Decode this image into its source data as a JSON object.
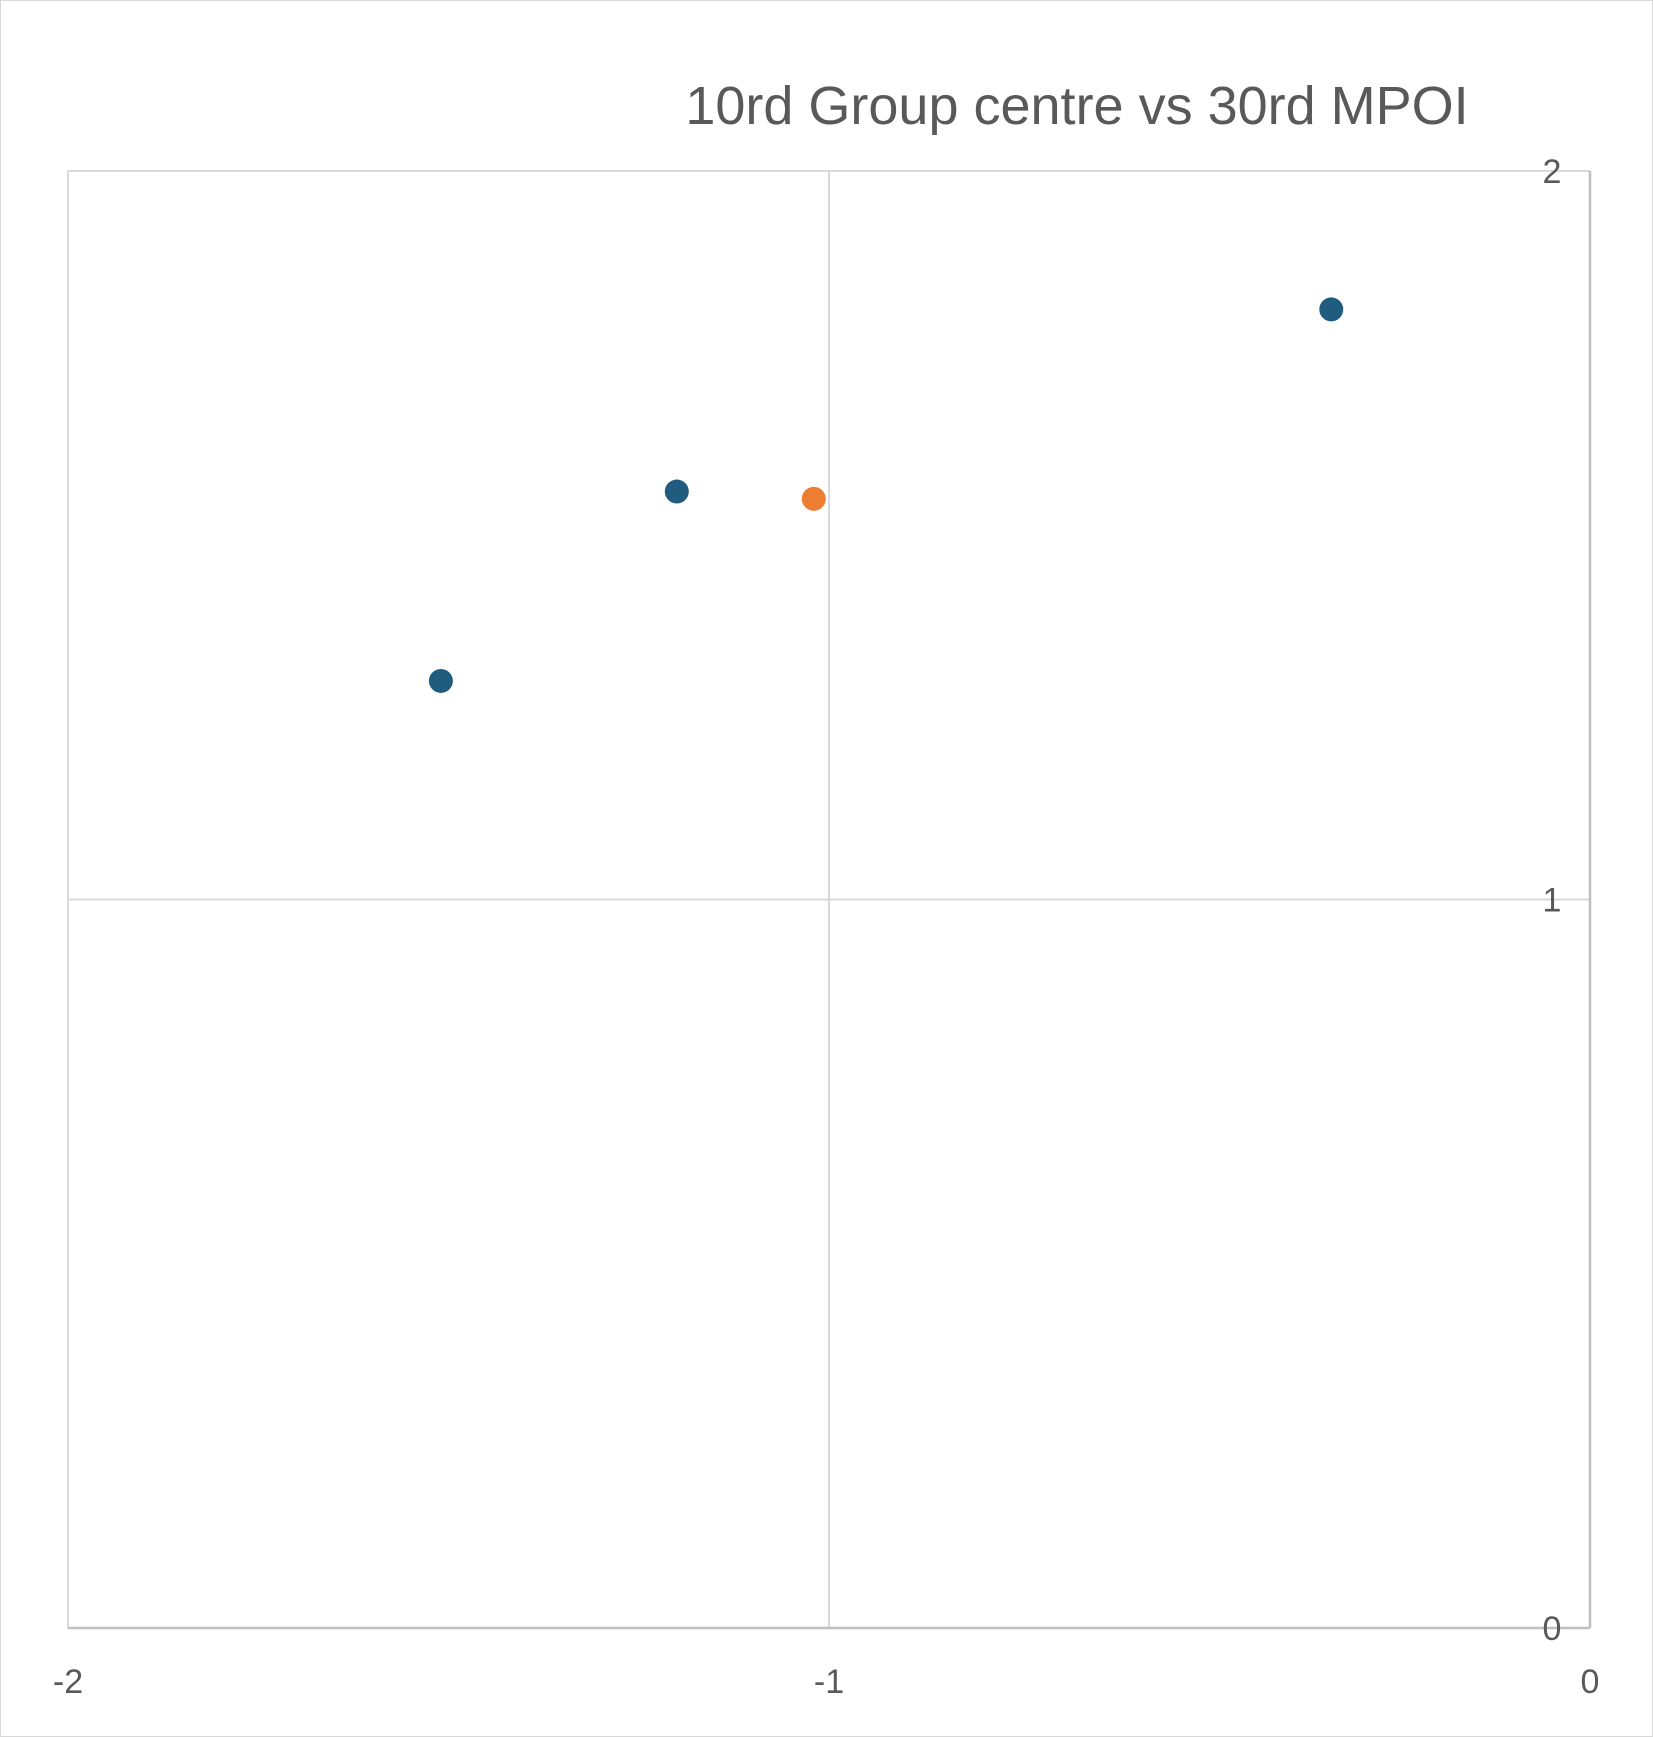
{
  "chart_data": {
    "type": "scatter",
    "title": "10rd Group centre vs 30rd MPOI",
    "xlabel": "",
    "ylabel": "",
    "xlim": [
      -2,
      0
    ],
    "ylim": [
      0,
      2
    ],
    "x_ticks": [
      -2,
      -1,
      0
    ],
    "y_ticks": [
      0,
      1,
      2
    ],
    "x_tick_labels": [
      "-2",
      "-1",
      "0"
    ],
    "y_tick_labels": [
      "0",
      "1",
      "2"
    ],
    "grid": true,
    "legend": "none",
    "series": [
      {
        "color": "#1f5c7d",
        "points": [
          {
            "x": -1.51,
            "y": 1.3
          },
          {
            "x": -1.2,
            "y": 1.56
          },
          {
            "x": -0.34,
            "y": 1.81
          }
        ]
      },
      {
        "color": "#ed7d31",
        "points": [
          {
            "x": -1.02,
            "y": 1.55
          }
        ]
      }
    ]
  }
}
